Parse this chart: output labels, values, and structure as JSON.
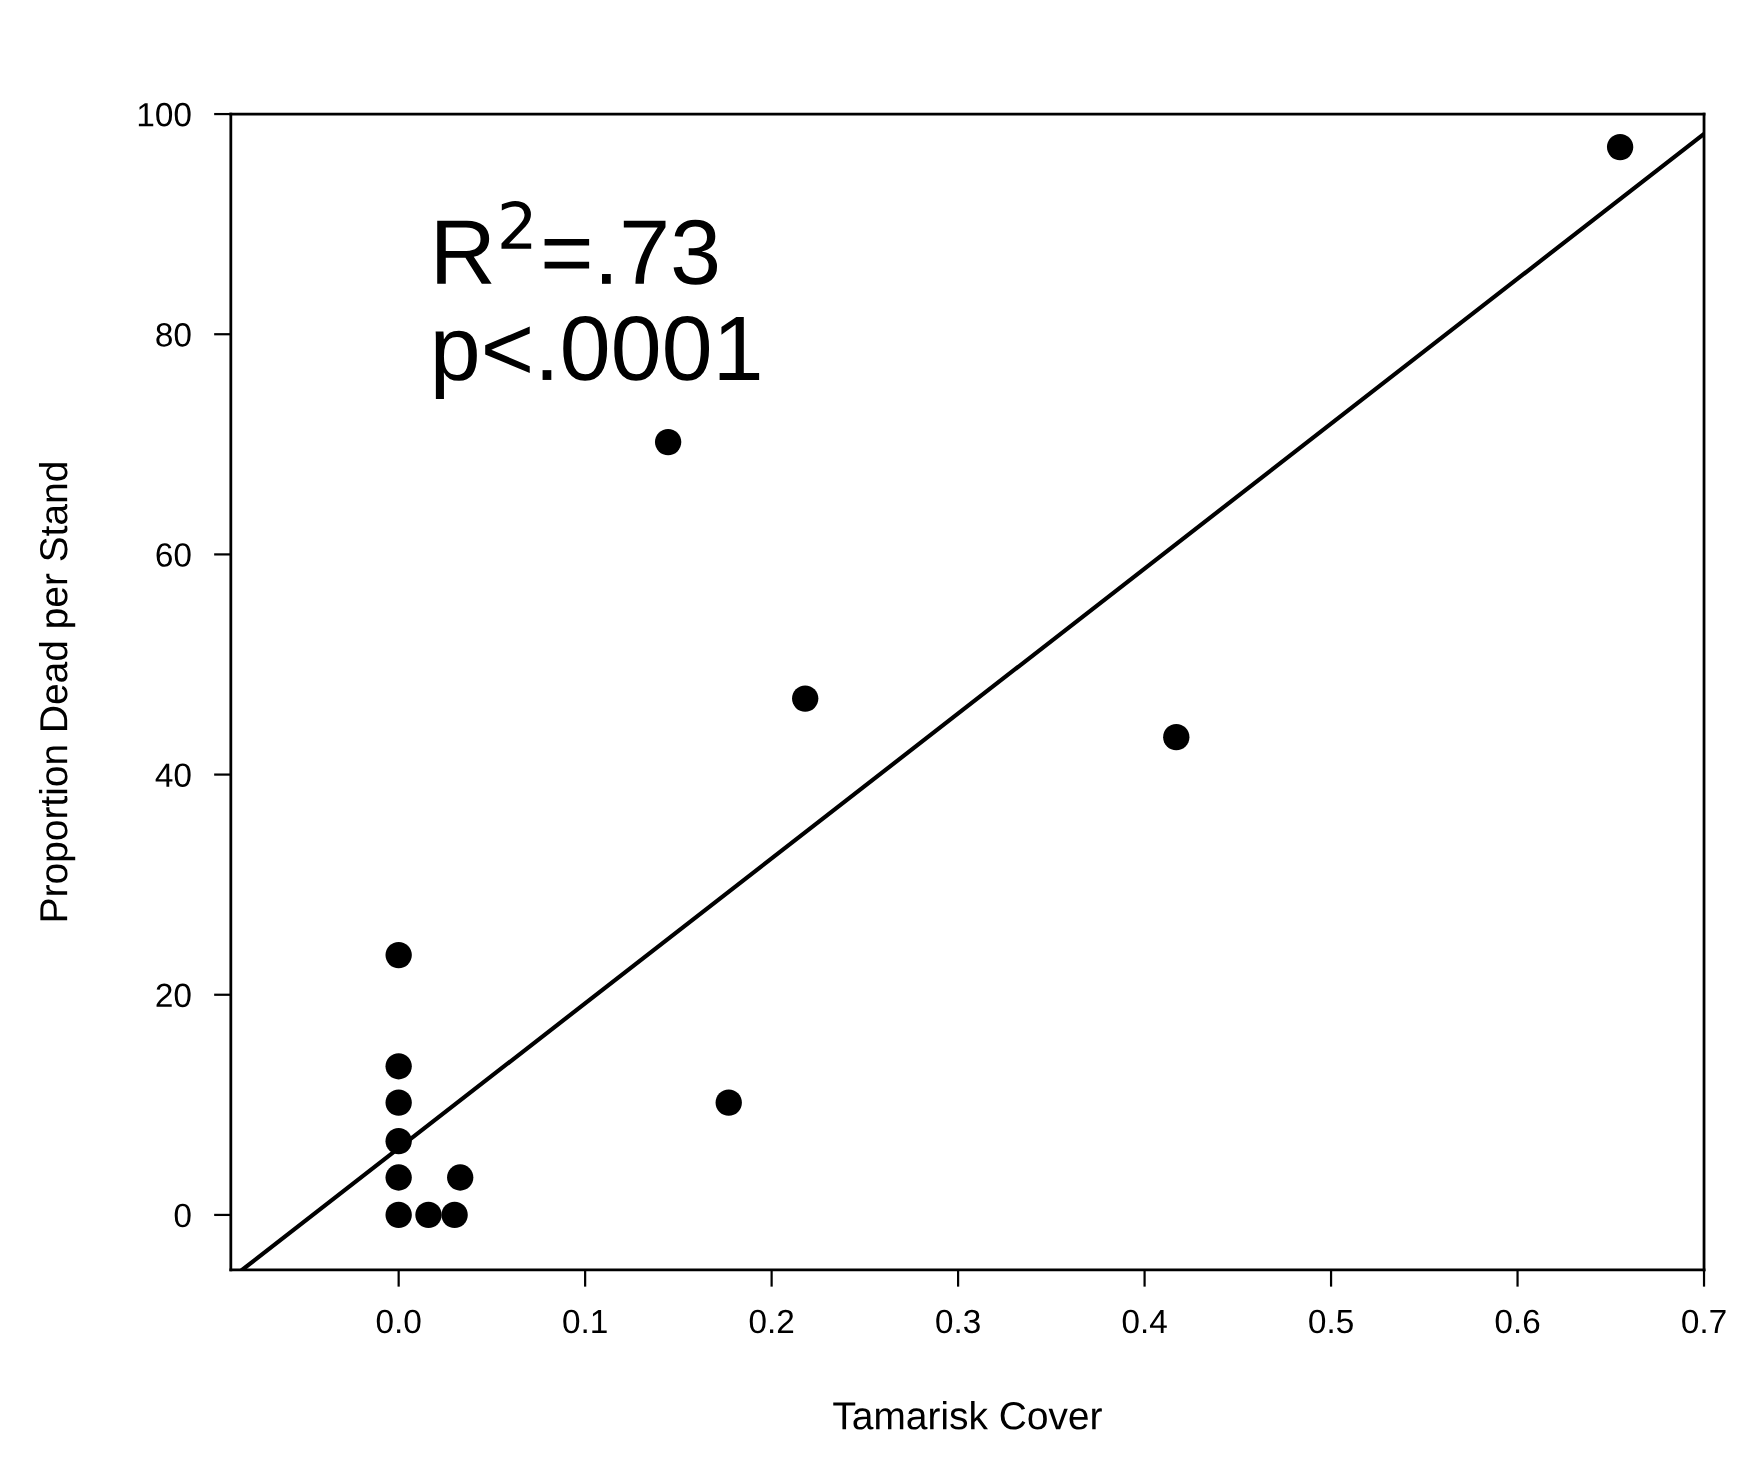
{
  "chart_data": {
    "type": "scatter",
    "xlabel": "Tamarisk Cover",
    "ylabel": "Proportion Dead per Stand",
    "annotations": [
      "R$^{2}$=.73\np<.0001"
    ],
    "xlim": [
      -0.09,
      0.7
    ],
    "ylim": [
      -5,
      100
    ],
    "xticks": [
      {
        "value": 0,
        "label": "0.0"
      },
      0.1,
      0.2,
      0.3,
      0.4,
      0.5,
      0.6,
      0.7
    ],
    "yticks": [
      0,
      20,
      40,
      60,
      80,
      100
    ],
    "grid": false,
    "legend": false,
    "series": [
      {
        "marker": "circle",
        "color": "#000000",
        "x": [
          0,
          0,
          0,
          0,
          0,
          0,
          0.016,
          0.03,
          0.033,
          0.177,
          0.1445,
          0.218,
          0.417,
          0.655
        ],
        "values": [
          0,
          3.4,
          6.7,
          10.2,
          13.5,
          23.6,
          0,
          0,
          3.4,
          10.2,
          70.2,
          46.9,
          43.4,
          97.0
        ]
      },
      {
        "type": "line",
        "marker": "none",
        "color": "#000000",
        "line_style": "solid",
        "x": [
          -0.084,
          0.7
        ],
        "values": [
          -5,
          98.2
        ]
      }
    ]
  }
}
